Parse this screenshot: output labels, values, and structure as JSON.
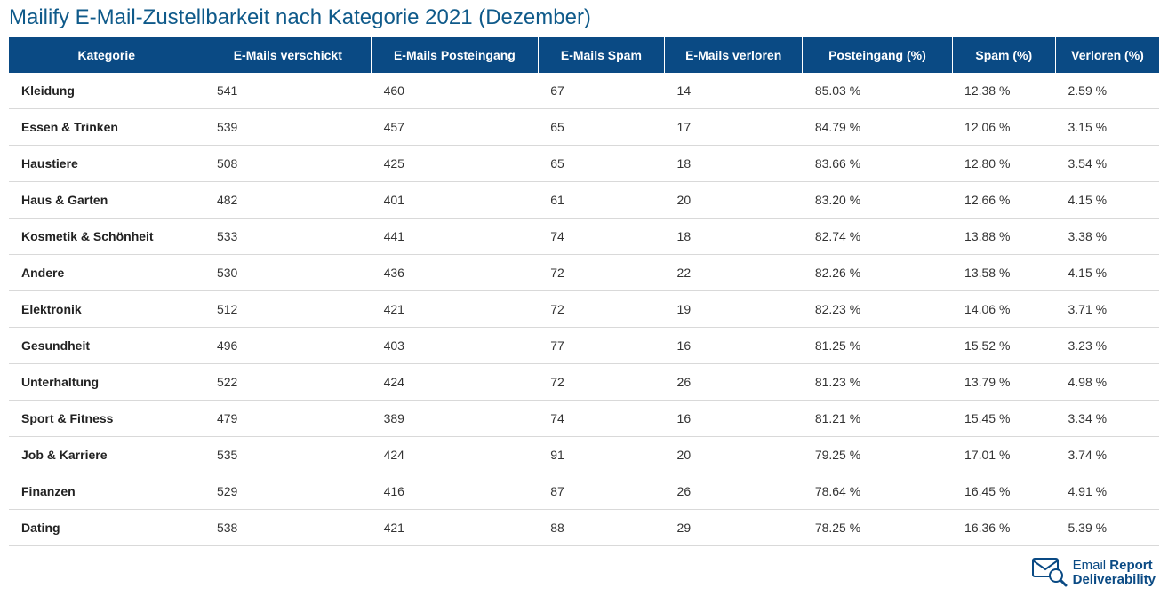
{
  "title": {
    "text": "Mailify E-Mail-Zustellbarkeit nach Kategorie 2021 (Dezember)",
    "color": "#0f5a8a",
    "fontsize": 24,
    "fontweight": 400
  },
  "table": {
    "header_bg": "#0a4a84",
    "header_fg": "#ffffff",
    "header_fontsize": 14,
    "header_fontweight": 700,
    "row_border_color": "#d9d9d9",
    "cell_fontsize": 14,
    "category_fontweight": 700,
    "column_widths_pct": [
      17,
      14.5,
      14.5,
      11,
      12,
      13,
      9,
      9
    ],
    "columns": [
      "Kategorie",
      "E-Mails verschickt",
      "E-Mails Posteingang",
      "E-Mails Spam",
      "E-Mails verloren",
      "Posteingang (%)",
      "Spam (%)",
      "Verloren (%)"
    ],
    "rows": [
      [
        "Kleidung",
        "541",
        "460",
        "67",
        "14",
        "85.03 %",
        "12.38 %",
        "2.59 %"
      ],
      [
        "Essen & Trinken",
        "539",
        "457",
        "65",
        "17",
        "84.79 %",
        "12.06 %",
        "3.15 %"
      ],
      [
        "Haustiere",
        "508",
        "425",
        "65",
        "18",
        "83.66 %",
        "12.80 %",
        "3.54 %"
      ],
      [
        "Haus & Garten",
        "482",
        "401",
        "61",
        "20",
        "83.20 %",
        "12.66 %",
        "4.15 %"
      ],
      [
        "Kosmetik & Schönheit",
        "533",
        "441",
        "74",
        "18",
        "82.74 %",
        "13.88 %",
        "3.38 %"
      ],
      [
        "Andere",
        "530",
        "436",
        "72",
        "22",
        "82.26 %",
        "13.58 %",
        "4.15 %"
      ],
      [
        "Elektronik",
        "512",
        "421",
        "72",
        "19",
        "82.23 %",
        "14.06 %",
        "3.71 %"
      ],
      [
        "Gesundheit",
        "496",
        "403",
        "77",
        "16",
        "81.25 %",
        "15.52 %",
        "3.23 %"
      ],
      [
        "Unterhaltung",
        "522",
        "424",
        "72",
        "26",
        "81.23 %",
        "13.79 %",
        "4.98 %"
      ],
      [
        "Sport & Fitness",
        "479",
        "389",
        "74",
        "16",
        "81.21 %",
        "15.45 %",
        "3.34 %"
      ],
      [
        "Job & Karriere",
        "535",
        "424",
        "91",
        "20",
        "79.25 %",
        "17.01 %",
        "3.74 %"
      ],
      [
        "Finanzen",
        "529",
        "416",
        "87",
        "26",
        "78.64 %",
        "16.45 %",
        "4.91 %"
      ],
      [
        "Dating",
        "538",
        "421",
        "88",
        "29",
        "78.25 %",
        "16.36 %",
        "5.39 %"
      ]
    ]
  },
  "logo": {
    "line1_a": "Email ",
    "line1_b": "Report",
    "line2": "Deliverability",
    "text_color": "#0a4a84",
    "accent_color": "#0a4a84",
    "icon_stroke": "#0a4a84",
    "icon_glass": "#0a4a84"
  }
}
